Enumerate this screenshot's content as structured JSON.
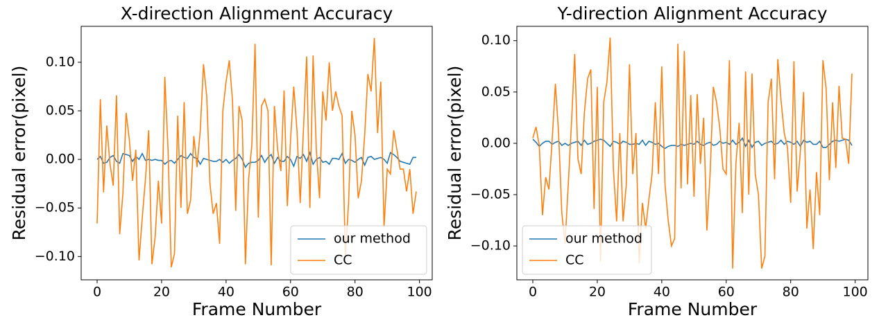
{
  "chart_data": [
    {
      "type": "line",
      "title": "X-direction Alignment Accuracy",
      "xlabel": "Frame Number",
      "ylabel": "Residual error(pixel)",
      "x": [
        0,
        1,
        2,
        3,
        4,
        5,
        6,
        7,
        8,
        9,
        10,
        11,
        12,
        13,
        14,
        15,
        16,
        17,
        18,
        19,
        20,
        21,
        22,
        23,
        24,
        25,
        26,
        27,
        28,
        29,
        30,
        31,
        32,
        33,
        34,
        35,
        36,
        37,
        38,
        39,
        40,
        41,
        42,
        43,
        44,
        45,
        46,
        47,
        48,
        49,
        50,
        51,
        52,
        53,
        54,
        55,
        56,
        57,
        58,
        59,
        60,
        61,
        62,
        63,
        64,
        65,
        66,
        67,
        68,
        69,
        70,
        71,
        72,
        73,
        74,
        75,
        76,
        77,
        78,
        79,
        80,
        81,
        82,
        83,
        84,
        85,
        86,
        87,
        88,
        89,
        90,
        91,
        92,
        93,
        94,
        95,
        96,
        97,
        98,
        99
      ],
      "series": [
        {
          "name": "our method",
          "color": "#1f77b4",
          "values": [
            0,
            0.003,
            -0.004,
            -0.003,
            0.002,
            0.004,
            -0.002,
            -0.004,
            0.006,
            0.005,
            0.004,
            -0.002,
            0.003,
            0,
            0.006,
            -0.001,
            0,
            -0.001,
            0,
            -0.001,
            -0.001,
            -0.005,
            -0.002,
            -0.001,
            -0.004,
            0,
            0.004,
            0.002,
            0.001,
            0.006,
            0.002,
            0.001,
            -0.005,
            0.001,
            0,
            -0.001,
            -0.002,
            -0.002,
            0,
            -0.003,
            0,
            -0.004,
            -0.001,
            0.001,
            0.005,
            0,
            -0.008,
            -0.004,
            -0.003,
            -0.003,
            -0.001,
            0.004,
            -0.003,
            0.002,
            0.005,
            -0.004,
            0.002,
            -0.002,
            -0.002,
            0.003,
            0,
            -0.007,
            0.003,
            0.001,
            0.005,
            -0.002,
            0.007,
            -0.005,
            0,
            0.002,
            -0.003,
            -0.002,
            -0.005,
            0.001,
            0.001,
            0,
            0.006,
            -0.004,
            0,
            -0.001,
            -0.003,
            0,
            0.002,
            -0.006,
            0.002,
            0.003,
            0,
            0.001,
            0.002,
            0,
            -0.004,
            0.007,
            0.005,
            0.002,
            -0.002,
            -0.003,
            -0.004,
            -0.005,
            0.002,
            0.002
          ]
        },
        {
          "name": "CC",
          "color": "#ff7f0e",
          "values": [
            -0.066,
            0.062,
            -0.034,
            0.035,
            -0.005,
            -0.027,
            0.066,
            -0.077,
            -0.035,
            0.048,
            0.02,
            -0.022,
            0.01,
            -0.104,
            -0.06,
            -0.02,
            0.03,
            -0.108,
            -0.08,
            -0.022,
            -0.066,
            0.085,
            0.01,
            -0.111,
            -0.097,
            0.045,
            -0.05,
            0.059,
            -0.056,
            -0.042,
            0.024,
            -0.008,
            0.03,
            0.098,
            0.065,
            -0.025,
            -0.056,
            -0.045,
            -0.087,
            0.05,
            0.08,
            0.102,
            0.06,
            -0.053,
            0.055,
            0.04,
            -0.108,
            -0.02,
            0.015,
            0.119,
            -0.06,
            0.055,
            0.062,
            0.05,
            -0.109,
            0.055,
            0.01,
            -0.012,
            0.071,
            -0.048,
            0.02,
            0.075,
            0.03,
            -0.045,
            0.03,
            0.106,
            -0.05,
            0.107,
            0.01,
            -0.04,
            0.07,
            0.04,
            0.1,
            0.05,
            0.07,
            0.055,
            0.045,
            -0.1,
            -0.045,
            0.05,
            0.025,
            -0.04,
            -0.022,
            0.025,
            0.088,
            0.07,
            0.125,
            0.027,
            0.08,
            -0.07,
            -0.01,
            -0.015,
            0.03,
            0.01,
            -0.01,
            -0.01,
            -0.033,
            -0.01,
            -0.056,
            -0.033
          ]
        }
      ],
      "xlim": [
        -4.95,
        103.95
      ],
      "xticks": [
        0,
        20,
        40,
        60,
        80,
        100
      ],
      "ylim": [
        -0.124,
        0.137
      ],
      "yticks": [
        {
          "value": -0.1,
          "label": "−0.10"
        },
        {
          "value": -0.05,
          "label": "−0.05"
        },
        {
          "value": 0,
          "label": "0.00"
        },
        {
          "value": 0.05,
          "label": "0.05"
        },
        {
          "value": 0.1,
          "label": "0.10"
        }
      ],
      "legend": "lower right"
    },
    {
      "type": "line",
      "title": "Y-direction Alignment Accuracy",
      "xlabel": "Frame Number",
      "ylabel": "Residual error(pixel)",
      "x": [
        0,
        1,
        2,
        3,
        4,
        5,
        6,
        7,
        8,
        9,
        10,
        11,
        12,
        13,
        14,
        15,
        16,
        17,
        18,
        19,
        20,
        21,
        22,
        23,
        24,
        25,
        26,
        27,
        28,
        29,
        30,
        31,
        32,
        33,
        34,
        35,
        36,
        37,
        38,
        39,
        40,
        41,
        42,
        43,
        44,
        45,
        46,
        47,
        48,
        49,
        50,
        51,
        52,
        53,
        54,
        55,
        56,
        57,
        58,
        59,
        60,
        61,
        62,
        63,
        64,
        65,
        66,
        67,
        68,
        69,
        70,
        71,
        72,
        73,
        74,
        75,
        76,
        77,
        78,
        79,
        80,
        81,
        82,
        83,
        84,
        85,
        86,
        87,
        88,
        89,
        90,
        91,
        92,
        93,
        94,
        95,
        96,
        97,
        98,
        99
      ],
      "series": [
        {
          "name": "our method",
          "color": "#1f77b4",
          "values": [
            0.004,
            0.001,
            -0.003,
            0,
            0.002,
            0.002,
            -0.001,
            0.001,
            0.002,
            -0.002,
            0,
            -0.002,
            0,
            0.001,
            0.002,
            -0.002,
            0.003,
            -0.001,
            0,
            0.002,
            0.003,
            0.004,
            0.003,
            0,
            -0.003,
            0.002,
            0.001,
            -0.001,
            0.002,
            0.001,
            -0.001,
            -0.001,
            0,
            -0.001,
            0.003,
            -0.002,
            0.002,
            0.001,
            -0.001,
            0,
            -0.003,
            -0.005,
            -0.003,
            -0.002,
            -0.002,
            -0.003,
            -0.001,
            -0.002,
            -0.001,
            0,
            -0.001,
            0.002,
            -0.001,
            -0.002,
            0,
            0.001,
            -0.002,
            -0.001,
            0.002,
            0,
            0.001,
            -0.001,
            0.003,
            -0.001,
            0.001,
            0.005,
            -0.003,
            0.003,
            -0.004,
            0.001,
            0.002,
            -0.002,
            0,
            0.001,
            0.002,
            -0.001,
            0,
            0.003,
            -0.001,
            0.002,
            0.001,
            -0.001,
            0.002,
            -0.003,
            0.003,
            0.001,
            0.002,
            -0.001,
            -0.001,
            0.002,
            -0.004,
            -0.004,
            -0.001,
            0.002,
            0.003,
            0.002,
            0.003,
            0.004,
            0.003,
            -0.002
          ]
        },
        {
          "name": "CC",
          "color": "#ff7f0e",
          "values": [
            0.005,
            0.016,
            -0.002,
            -0.07,
            -0.033,
            -0.045,
            0.003,
            0.058,
            0.01,
            -0.068,
            -0.098,
            -0.04,
            0.02,
            0.087,
            -0.015,
            -0.03,
            0.03,
            0.063,
            0.072,
            -0.064,
            0.055,
            -0.115,
            0.04,
            0.06,
            0.103,
            -0.025,
            -0.076,
            0.01,
            -0.076,
            -0.04,
            0.077,
            -0.03,
            0.01,
            -0.117,
            -0.058,
            -0.083,
            -0.055,
            -0.03,
            0.04,
            -0.03,
            0.075,
            -0.04,
            -0.075,
            -0.1,
            -0.093,
            0.097,
            -0.044,
            0.09,
            -0.04,
            0.047,
            -0.052,
            0.048,
            -0.02,
            0.025,
            -0.085,
            -0.03,
            0.055,
            0.04,
            0.015,
            -0.025,
            -0.03,
            0.081,
            -0.122,
            -0.02,
            0.02,
            -0.068,
            0.07,
            -0.05,
            0.068,
            -0.03,
            -0.05,
            -0.122,
            -0.11,
            0.04,
            0.063,
            -0.035,
            0.082,
            0.042,
            0.01,
            -0.004,
            -0.058,
            0.08,
            -0.047,
            -0.008,
            0.05,
            -0.083,
            -0.045,
            -0.103,
            -0.028,
            -0.07,
            0.081,
            0.053,
            -0.036,
            0.04,
            -0.024,
            0.056,
            0.005,
            0.004,
            -0.02,
            0.068
          ]
        }
      ],
      "xlim": [
        -4.95,
        103.95
      ],
      "xticks": [
        0,
        20,
        40,
        60,
        80,
        100
      ],
      "ylim": [
        -0.133,
        0.114
      ],
      "yticks": [
        {
          "value": -0.1,
          "label": "−0.10"
        },
        {
          "value": -0.05,
          "label": "−0.05"
        },
        {
          "value": 0,
          "label": "0.00"
        },
        {
          "value": 0.05,
          "label": "0.05"
        },
        {
          "value": 0.1,
          "label": "0.10"
        }
      ],
      "legend": "lower left"
    }
  ]
}
